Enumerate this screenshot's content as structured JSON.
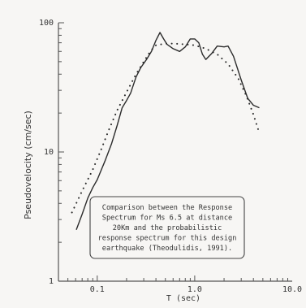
{
  "chart_data": {
    "type": "line",
    "xlabel": "T (sec)",
    "ylabel": "Pseudovelocity (cm/sec)",
    "x_scale": "log",
    "y_scale": "log",
    "xlim": [
      0.04,
      10
    ],
    "ylim": [
      1,
      100
    ],
    "x_ticks": [
      {
        "value": 0.1,
        "label": "0.1"
      },
      {
        "value": 1,
        "label": "1.0"
      },
      {
        "value": 10,
        "label": "10.0"
      }
    ],
    "y_ticks": [
      {
        "value": 1,
        "label": "1"
      },
      {
        "value": 10,
        "label": "10"
      },
      {
        "value": 100,
        "label": "100"
      }
    ],
    "grid": false,
    "series": [
      {
        "style": "solid",
        "color": "#2b2b2b",
        "points": [
          [
            0.061,
            2.5
          ],
          [
            0.07,
            3.3
          ],
          [
            0.08,
            4.4
          ],
          [
            0.09,
            5.3
          ],
          [
            0.1,
            6.1
          ],
          [
            0.12,
            8.5
          ],
          [
            0.14,
            11.5
          ],
          [
            0.16,
            16.0
          ],
          [
            0.18,
            22.0
          ],
          [
            0.2,
            25.0
          ],
          [
            0.22,
            28.5
          ],
          [
            0.25,
            38.0
          ],
          [
            0.28,
            45.0
          ],
          [
            0.32,
            52.0
          ],
          [
            0.36,
            60.0
          ],
          [
            0.4,
            73.0
          ],
          [
            0.44,
            84.0
          ],
          [
            0.48,
            75.0
          ],
          [
            0.52,
            68.0
          ],
          [
            0.6,
            63.0
          ],
          [
            0.7,
            60.0
          ],
          [
            0.8,
            65.0
          ],
          [
            0.9,
            75.0
          ],
          [
            1.0,
            75.0
          ],
          [
            1.1,
            70.0
          ],
          [
            1.2,
            57.0
          ],
          [
            1.3,
            52.0
          ],
          [
            1.5,
            58.0
          ],
          [
            1.7,
            66.0
          ],
          [
            2.0,
            65.0
          ],
          [
            2.2,
            66.0
          ],
          [
            2.5,
            55.0
          ],
          [
            3.0,
            36.0
          ],
          [
            3.5,
            26.0
          ],
          [
            4.0,
            23.0
          ],
          [
            4.6,
            22.0
          ]
        ]
      },
      {
        "style": "dotted",
        "color": "#2b2b2b",
        "points": [
          [
            0.055,
            3.4
          ],
          [
            0.07,
            5.0
          ],
          [
            0.09,
            7.3
          ],
          [
            0.11,
            10.5
          ],
          [
            0.13,
            14.5
          ],
          [
            0.16,
            21.0
          ],
          [
            0.2,
            29.0
          ],
          [
            0.25,
            40.0
          ],
          [
            0.3,
            50.0
          ],
          [
            0.35,
            60.0
          ],
          [
            0.4,
            67.0
          ],
          [
            0.5,
            69.0
          ],
          [
            0.6,
            69.0
          ],
          [
            0.8,
            68.0
          ],
          [
            1.0,
            67.0
          ],
          [
            1.3,
            63.0
          ],
          [
            1.7,
            57.0
          ],
          [
            2.2,
            48.0
          ],
          [
            2.8,
            37.0
          ],
          [
            3.4,
            27.0
          ],
          [
            4.0,
            19.5
          ],
          [
            4.6,
            14.0
          ]
        ]
      }
    ],
    "annotation": {
      "lines": [
        "Comparison between the Response",
        "Spectrum for Ms 6.5 at distance",
        "20Km and the probabilistic",
        "response spectrum for this design",
        "earthquake (Theodulidis, 1991)."
      ]
    }
  }
}
